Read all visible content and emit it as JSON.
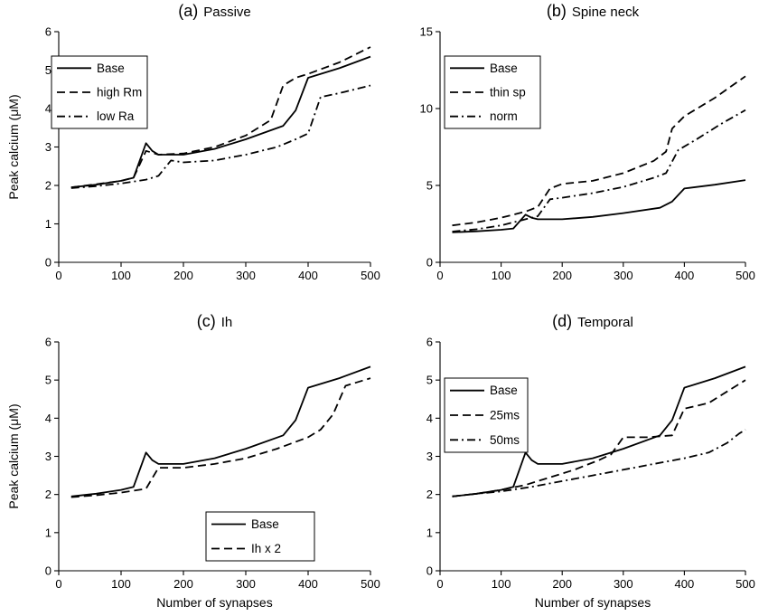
{
  "chart_data": [
    {
      "type": "line",
      "panel_label": "(a)",
      "title": "Passive",
      "xlabel": "",
      "ylabel": "Peak calcium (μM)",
      "xlim": [
        0,
        500
      ],
      "ylim": [
        0,
        6
      ],
      "xticks": [
        "0",
        "100",
        "200",
        "300",
        "400",
        "500"
      ],
      "yticks": [
        "0",
        "1",
        "2",
        "3",
        "4",
        "5",
        "6"
      ],
      "grid": false,
      "legend": "top-left",
      "series": [
        {
          "name": "Base",
          "style": "solid",
          "x": [
            20,
            60,
            100,
            120,
            140,
            150,
            160,
            200,
            250,
            300,
            360,
            380,
            400,
            450,
            500
          ],
          "y": [
            1.95,
            2.02,
            2.12,
            2.2,
            3.1,
            2.9,
            2.8,
            2.8,
            2.95,
            3.2,
            3.55,
            3.95,
            4.8,
            5.05,
            5.35
          ]
        },
        {
          "name": "high Rm",
          "style": "dashed",
          "x": [
            20,
            60,
            100,
            120,
            140,
            160,
            200,
            250,
            300,
            340,
            360,
            380,
            400,
            450,
            500
          ],
          "y": [
            1.95,
            2.03,
            2.12,
            2.2,
            2.9,
            2.8,
            2.83,
            3.0,
            3.3,
            3.7,
            4.6,
            4.8,
            4.9,
            5.2,
            5.6
          ]
        },
        {
          "name": "low Ra",
          "style": "dashdot",
          "x": [
            20,
            60,
            100,
            140,
            160,
            180,
            200,
            250,
            300,
            350,
            380,
            400,
            420,
            450,
            500
          ],
          "y": [
            1.93,
            1.98,
            2.05,
            2.15,
            2.25,
            2.65,
            2.6,
            2.65,
            2.8,
            3.0,
            3.2,
            3.35,
            4.3,
            4.4,
            4.6
          ]
        }
      ]
    },
    {
      "type": "line",
      "panel_label": "(b)",
      "title": "Spine neck",
      "xlabel": "",
      "ylabel": "",
      "xlim": [
        0,
        500
      ],
      "ylim": [
        0,
        15
      ],
      "xticks": [
        "0",
        "100",
        "200",
        "300",
        "400",
        "500"
      ],
      "yticks": [
        "0",
        "5",
        "10",
        "15"
      ],
      "grid": false,
      "legend": "top-left",
      "series": [
        {
          "name": "Base",
          "style": "solid",
          "x": [
            20,
            60,
            100,
            120,
            140,
            150,
            160,
            200,
            250,
            300,
            360,
            380,
            400,
            450,
            500
          ],
          "y": [
            1.95,
            2.02,
            2.12,
            2.2,
            3.1,
            2.9,
            2.8,
            2.8,
            2.95,
            3.2,
            3.55,
            3.95,
            4.8,
            5.05,
            5.35
          ]
        },
        {
          "name": "thin sp",
          "style": "dashed",
          "x": [
            20,
            60,
            100,
            140,
            160,
            180,
            200,
            250,
            300,
            350,
            370,
            380,
            400,
            450,
            500
          ],
          "y": [
            2.4,
            2.6,
            2.9,
            3.3,
            3.6,
            4.8,
            5.1,
            5.3,
            5.8,
            6.6,
            7.2,
            8.7,
            9.5,
            10.7,
            12.1
          ]
        },
        {
          "name": "norm",
          "style": "dashdot",
          "x": [
            20,
            60,
            100,
            140,
            160,
            180,
            200,
            250,
            300,
            350,
            370,
            390,
            420,
            460,
            500
          ],
          "y": [
            2.0,
            2.15,
            2.4,
            2.8,
            3.0,
            4.1,
            4.2,
            4.5,
            4.9,
            5.5,
            5.8,
            7.3,
            8.0,
            9.0,
            9.9
          ]
        }
      ]
    },
    {
      "type": "line",
      "panel_label": "(c)",
      "title": "Ih",
      "xlabel": "Number of synapses",
      "ylabel": "Peak calcium (μM)",
      "xlim": [
        0,
        500
      ],
      "ylim": [
        0,
        6
      ],
      "xticks": [
        "0",
        "100",
        "200",
        "300",
        "400",
        "500"
      ],
      "yticks": [
        "0",
        "1",
        "2",
        "3",
        "4",
        "5",
        "6"
      ],
      "grid": false,
      "legend": "bottom-right",
      "series": [
        {
          "name": "Base",
          "style": "solid",
          "x": [
            20,
            60,
            100,
            120,
            140,
            150,
            160,
            200,
            250,
            300,
            360,
            380,
            400,
            450,
            500
          ],
          "y": [
            1.95,
            2.02,
            2.12,
            2.2,
            3.1,
            2.9,
            2.8,
            2.8,
            2.95,
            3.2,
            3.55,
            3.95,
            4.8,
            5.05,
            5.35
          ]
        },
        {
          "name": "Ih x 2",
          "style": "dashed",
          "x": [
            20,
            60,
            100,
            140,
            160,
            200,
            250,
            300,
            350,
            400,
            420,
            440,
            460,
            480,
            500
          ],
          "y": [
            1.93,
            1.98,
            2.05,
            2.15,
            2.7,
            2.7,
            2.8,
            2.95,
            3.2,
            3.5,
            3.7,
            4.1,
            4.85,
            4.95,
            5.05
          ]
        }
      ]
    },
    {
      "type": "line",
      "panel_label": "(d)",
      "title": "Temporal",
      "xlabel": "Number of synapses",
      "ylabel": "",
      "xlim": [
        0,
        500
      ],
      "ylim": [
        0,
        6
      ],
      "xticks": [
        "0",
        "100",
        "200",
        "300",
        "400",
        "500"
      ],
      "yticks": [
        "0",
        "1",
        "2",
        "3",
        "4",
        "5",
        "6"
      ],
      "grid": false,
      "legend": "top-left",
      "series": [
        {
          "name": "Base",
          "style": "solid",
          "x": [
            20,
            60,
            100,
            120,
            140,
            150,
            160,
            200,
            250,
            300,
            360,
            380,
            400,
            450,
            500
          ],
          "y": [
            1.95,
            2.02,
            2.12,
            2.2,
            3.1,
            2.9,
            2.8,
            2.8,
            2.95,
            3.2,
            3.55,
            3.95,
            4.8,
            5.05,
            5.35
          ]
        },
        {
          "name": "25ms",
          "style": "dashed",
          "x": [
            20,
            60,
            100,
            140,
            180,
            220,
            260,
            280,
            300,
            340,
            380,
            400,
            440,
            470,
            500
          ],
          "y": [
            1.95,
            2.02,
            2.12,
            2.25,
            2.45,
            2.65,
            2.9,
            3.05,
            3.5,
            3.5,
            3.55,
            4.25,
            4.4,
            4.7,
            5.0
          ]
        },
        {
          "name": "50ms",
          "style": "dashdot",
          "x": [
            20,
            60,
            100,
            150,
            200,
            250,
            300,
            350,
            400,
            440,
            470,
            490,
            500
          ],
          "y": [
            1.95,
            2.02,
            2.08,
            2.2,
            2.35,
            2.5,
            2.65,
            2.8,
            2.95,
            3.1,
            3.35,
            3.6,
            3.7
          ]
        }
      ]
    }
  ]
}
